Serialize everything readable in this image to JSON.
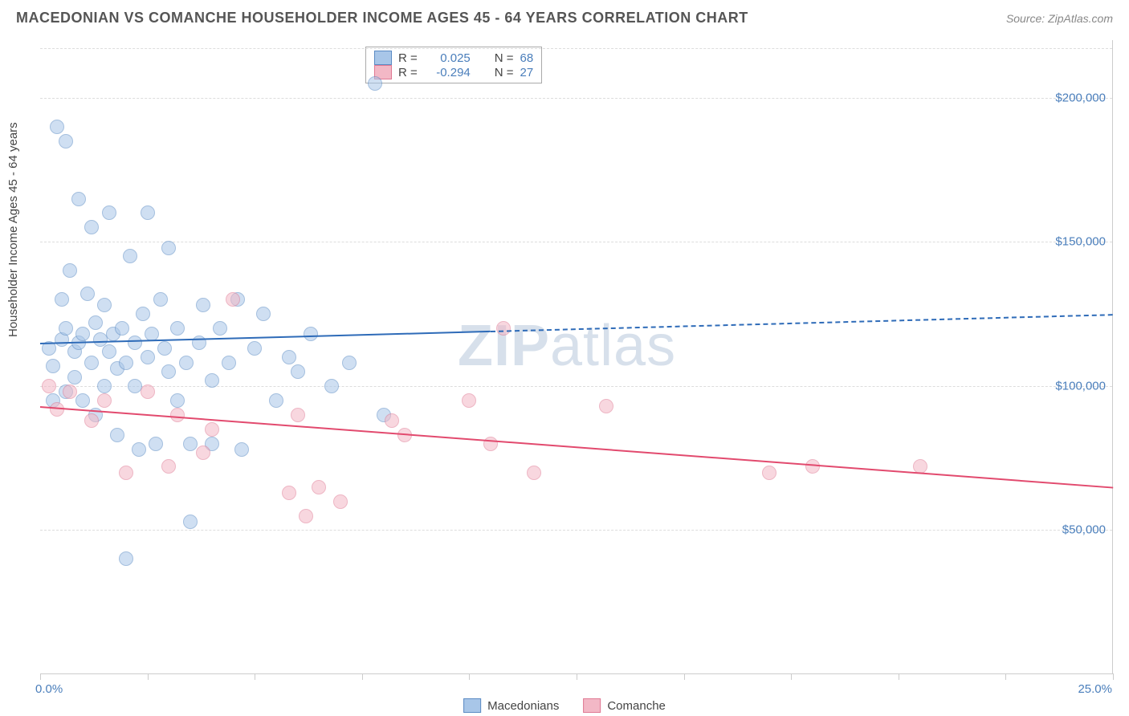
{
  "header": {
    "title": "MACEDONIAN VS COMANCHE HOUSEHOLDER INCOME AGES 45 - 64 YEARS CORRELATION CHART",
    "source": "Source: ZipAtlas.com"
  },
  "chart": {
    "type": "scatter",
    "ylabel": "Householder Income Ages 45 - 64 years",
    "watermark": "ZIPatlas",
    "background_color": "#ffffff",
    "grid_color": "#dddddd",
    "border_color": "#cccccc",
    "text_color": "#444444",
    "value_color": "#4a7ebb",
    "xlim": [
      0,
      25
    ],
    "ylim": [
      0,
      220000
    ],
    "xaxis": {
      "min_label": "0.0%",
      "max_label": "25.0%",
      "tick_positions_pct": [
        0,
        10,
        20,
        30,
        40,
        50,
        60,
        70,
        80,
        90,
        100
      ]
    },
    "yaxis": {
      "ticks": [
        {
          "value": 50000,
          "label": "$50,000"
        },
        {
          "value": 100000,
          "label": "$100,000"
        },
        {
          "value": 150000,
          "label": "$150,000"
        },
        {
          "value": 200000,
          "label": "$200,000"
        }
      ]
    },
    "legend_top": [
      {
        "series": "macedonians",
        "r_label": "R =",
        "r_value": "0.025",
        "n_label": "N =",
        "n_value": "68"
      },
      {
        "series": "comanche",
        "r_label": "R =",
        "r_value": "-0.294",
        "n_label": "N =",
        "n_value": "27"
      }
    ],
    "legend_bottom": [
      {
        "series": "macedonians",
        "label": "Macedonians"
      },
      {
        "series": "comanche",
        "label": "Comanche"
      }
    ],
    "series": {
      "macedonians": {
        "fill_color": "#a8c6e8",
        "stroke_color": "#5b8bc4",
        "line_color": "#2e6bb8",
        "marker_radius": 9,
        "fill_opacity": 0.55,
        "trend": {
          "y_at_xmin": 115000,
          "y_at_xmax": 125000,
          "solid_until_x": 10.5
        },
        "points": [
          [
            0.2,
            113000
          ],
          [
            0.3,
            95000
          ],
          [
            0.3,
            107000
          ],
          [
            0.4,
            190000
          ],
          [
            0.5,
            116000
          ],
          [
            0.5,
            130000
          ],
          [
            0.6,
            185000
          ],
          [
            0.6,
            120000
          ],
          [
            0.6,
            98000
          ],
          [
            0.7,
            140000
          ],
          [
            0.8,
            112000
          ],
          [
            0.8,
            103000
          ],
          [
            0.9,
            165000
          ],
          [
            0.9,
            115000
          ],
          [
            1.0,
            118000
          ],
          [
            1.0,
            95000
          ],
          [
            1.1,
            132000
          ],
          [
            1.2,
            108000
          ],
          [
            1.2,
            155000
          ],
          [
            1.3,
            122000
          ],
          [
            1.3,
            90000
          ],
          [
            1.4,
            116000
          ],
          [
            1.5,
            128000
          ],
          [
            1.5,
            100000
          ],
          [
            1.6,
            160000
          ],
          [
            1.6,
            112000
          ],
          [
            1.7,
            118000
          ],
          [
            1.8,
            106000
          ],
          [
            1.8,
            83000
          ],
          [
            1.9,
            120000
          ],
          [
            2.0,
            40000
          ],
          [
            2.0,
            108000
          ],
          [
            2.1,
            145000
          ],
          [
            2.2,
            100000
          ],
          [
            2.2,
            115000
          ],
          [
            2.3,
            78000
          ],
          [
            2.4,
            125000
          ],
          [
            2.5,
            160000
          ],
          [
            2.5,
            110000
          ],
          [
            2.6,
            118000
          ],
          [
            2.7,
            80000
          ],
          [
            2.8,
            130000
          ],
          [
            2.9,
            113000
          ],
          [
            3.0,
            148000
          ],
          [
            3.0,
            105000
          ],
          [
            3.2,
            95000
          ],
          [
            3.2,
            120000
          ],
          [
            3.4,
            108000
          ],
          [
            3.5,
            53000
          ],
          [
            3.5,
            80000
          ],
          [
            3.7,
            115000
          ],
          [
            3.8,
            128000
          ],
          [
            4.0,
            102000
          ],
          [
            4.0,
            80000
          ],
          [
            4.2,
            120000
          ],
          [
            4.4,
            108000
          ],
          [
            4.6,
            130000
          ],
          [
            4.7,
            78000
          ],
          [
            5.0,
            113000
          ],
          [
            5.2,
            125000
          ],
          [
            5.5,
            95000
          ],
          [
            5.8,
            110000
          ],
          [
            6.0,
            105000
          ],
          [
            6.3,
            118000
          ],
          [
            6.8,
            100000
          ],
          [
            7.2,
            108000
          ],
          [
            7.8,
            205000
          ],
          [
            8.0,
            90000
          ]
        ]
      },
      "comanche": {
        "fill_color": "#f3b8c6",
        "stroke_color": "#e07a94",
        "line_color": "#e24a6e",
        "marker_radius": 9,
        "fill_opacity": 0.55,
        "trend": {
          "y_at_xmin": 93000,
          "y_at_xmax": 65000,
          "solid_until_x": 25
        },
        "points": [
          [
            0.2,
            100000
          ],
          [
            0.4,
            92000
          ],
          [
            0.7,
            98000
          ],
          [
            1.2,
            88000
          ],
          [
            1.5,
            95000
          ],
          [
            2.0,
            70000
          ],
          [
            2.5,
            98000
          ],
          [
            3.0,
            72000
          ],
          [
            3.2,
            90000
          ],
          [
            3.8,
            77000
          ],
          [
            4.0,
            85000
          ],
          [
            4.5,
            130000
          ],
          [
            5.8,
            63000
          ],
          [
            6.0,
            90000
          ],
          [
            6.2,
            55000
          ],
          [
            6.5,
            65000
          ],
          [
            7.0,
            60000
          ],
          [
            8.2,
            88000
          ],
          [
            8.5,
            83000
          ],
          [
            10.0,
            95000
          ],
          [
            10.5,
            80000
          ],
          [
            10.8,
            120000
          ],
          [
            11.5,
            70000
          ],
          [
            13.2,
            93000
          ],
          [
            17.0,
            70000
          ],
          [
            18.0,
            72000
          ],
          [
            20.5,
            72000
          ]
        ]
      }
    }
  }
}
